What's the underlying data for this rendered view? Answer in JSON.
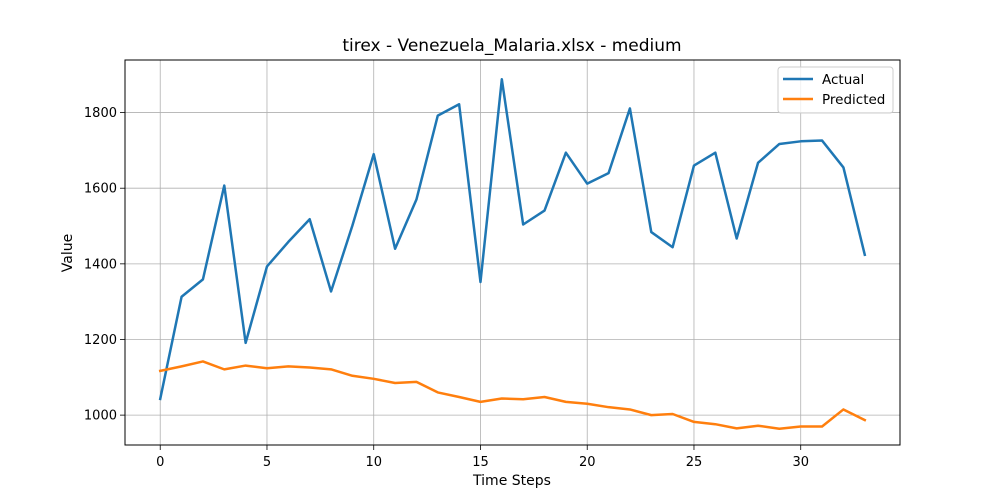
{
  "chart_data": {
    "type": "line",
    "title": "tirex - Venezuela_Malaria.xlsx - medium",
    "xlabel": "Time Steps",
    "ylabel": "Value",
    "xlim": [
      -1.65,
      34.65
    ],
    "ylim": [
      921,
      1939
    ],
    "xticks": [
      0,
      5,
      10,
      15,
      20,
      25,
      30
    ],
    "yticks": [
      1000,
      1200,
      1400,
      1600,
      1800
    ],
    "grid": true,
    "legend_position": "top-right",
    "x": [
      0,
      1,
      2,
      3,
      4,
      5,
      6,
      7,
      8,
      9,
      10,
      11,
      12,
      13,
      14,
      15,
      16,
      17,
      18,
      19,
      20,
      21,
      22,
      23,
      24,
      25,
      26,
      27,
      28,
      29,
      30,
      31,
      32,
      33
    ],
    "series": [
      {
        "name": "Actual",
        "color": "#1f77b4",
        "values": [
          1043,
          1313,
          1359,
          1607,
          1191,
          1393,
          1458,
          1518,
          1327,
          1501,
          1690,
          1440,
          1570,
          1792,
          1822,
          1352,
          1888,
          1504,
          1541,
          1694,
          1612,
          1640,
          1811,
          1484,
          1444,
          1660,
          1694,
          1467,
          1667,
          1717,
          1724,
          1726,
          1655,
          1424
        ]
      },
      {
        "name": "Predicted",
        "color": "#ff7f0e",
        "values": [
          1117,
          1129,
          1142,
          1121,
          1131,
          1124,
          1129,
          1126,
          1121,
          1104,
          1096,
          1085,
          1088,
          1060,
          1048,
          1035,
          1044,
          1042,
          1048,
          1035,
          1030,
          1021,
          1015,
          1000,
          1003,
          982,
          976,
          965,
          972,
          964,
          970,
          970,
          1015,
          987
        ]
      }
    ]
  }
}
